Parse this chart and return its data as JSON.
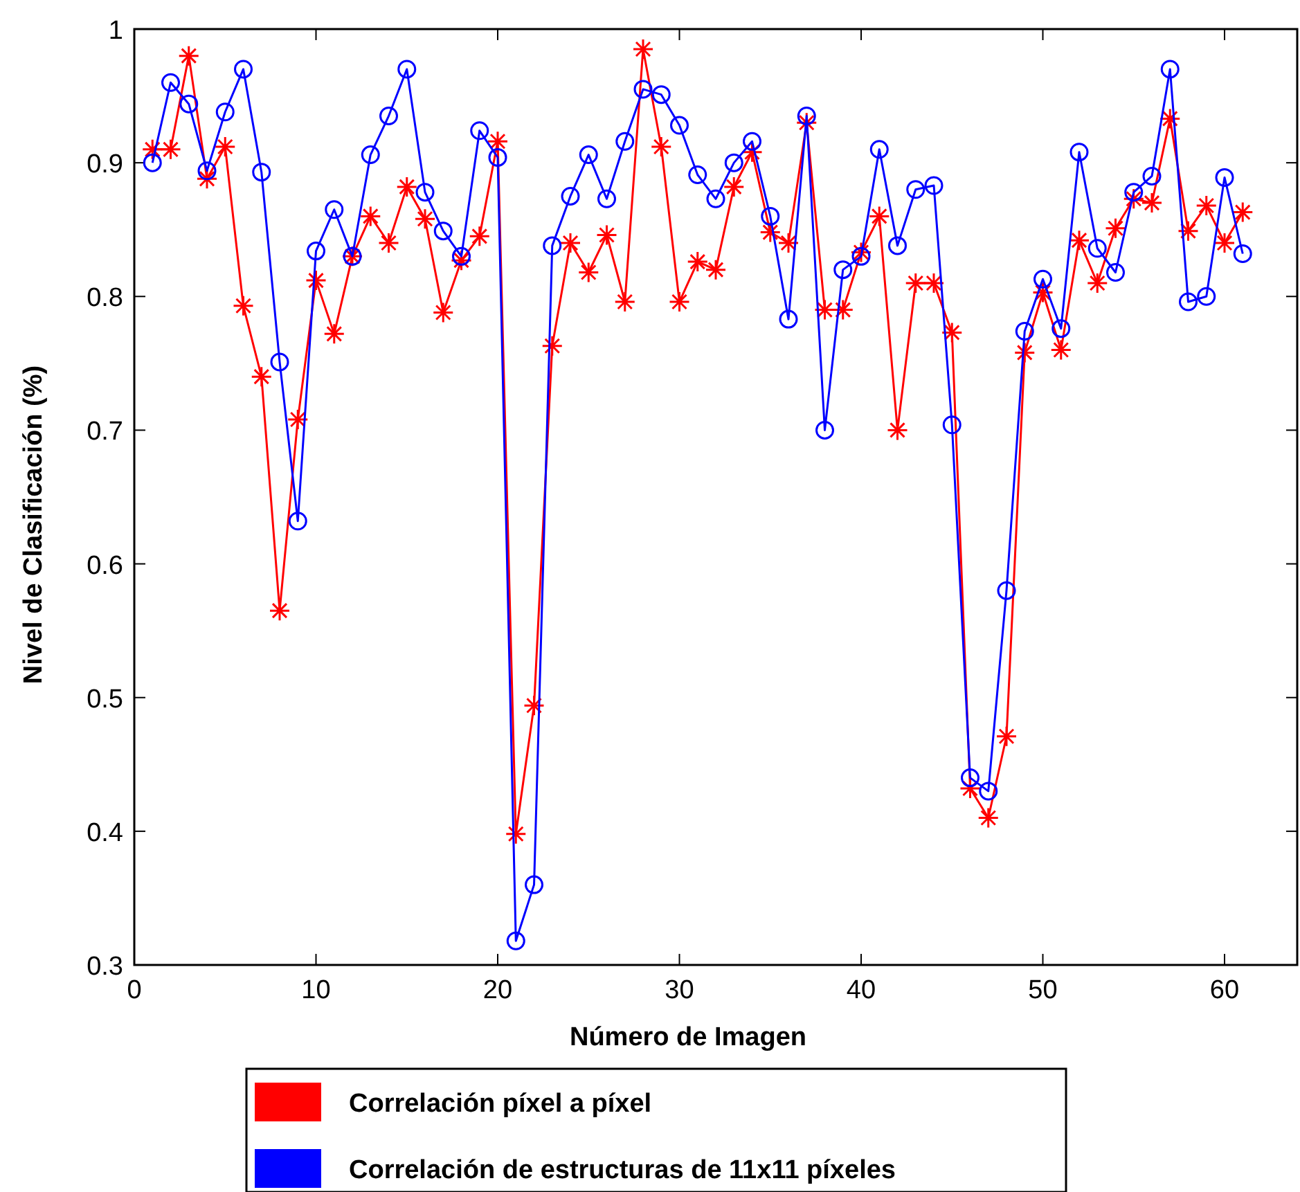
{
  "chart_data": {
    "type": "line",
    "xlabel": "Número de Imagen",
    "ylabel": "Nivel de Clasificación (%)",
    "x": [
      1,
      2,
      3,
      4,
      5,
      6,
      7,
      8,
      9,
      10,
      11,
      12,
      13,
      14,
      15,
      16,
      17,
      18,
      19,
      20,
      21,
      22,
      23,
      24,
      25,
      26,
      27,
      28,
      29,
      30,
      31,
      32,
      33,
      34,
      35,
      36,
      37,
      38,
      39,
      40,
      41,
      42,
      43,
      44,
      45,
      46,
      47,
      48,
      49,
      50,
      51,
      52,
      53,
      54,
      55,
      56,
      57,
      58,
      59,
      60,
      61
    ],
    "xlim": [
      0,
      64
    ],
    "xticks": [
      0,
      10,
      20,
      30,
      40,
      50,
      60
    ],
    "ylim": [
      0.3,
      1
    ],
    "yticks": [
      0.3,
      0.4,
      0.5,
      0.6,
      0.7,
      0.8,
      0.9,
      1
    ],
    "grid": false,
    "legend": "bottom",
    "series": [
      {
        "name": "Correlación píxel a píxel",
        "color": "#ff0000",
        "marker": "cross",
        "values": [
          0.91,
          0.91,
          0.98,
          0.888,
          0.912,
          0.793,
          0.74,
          0.565,
          0.708,
          0.812,
          0.772,
          0.83,
          0.86,
          0.84,
          0.882,
          0.858,
          0.788,
          0.827,
          0.845,
          0.916,
          0.398,
          0.494,
          0.763,
          0.84,
          0.818,
          0.846,
          0.796,
          0.985,
          0.912,
          0.796,
          0.826,
          0.82,
          0.882,
          0.908,
          0.848,
          0.84,
          0.93,
          0.79,
          0.79,
          0.833,
          0.86,
          0.7,
          0.81,
          0.81,
          0.773,
          0.432,
          0.41,
          0.471,
          0.758,
          0.803,
          0.76,
          0.842,
          0.81,
          0.851,
          0.873,
          0.87,
          0.933,
          0.849,
          0.868,
          0.84,
          0.863
        ]
      },
      {
        "name": "Correlación de estructuras de 11x11 píxeles",
        "color": "#0000ff",
        "marker": "circle",
        "values": [
          0.9,
          0.96,
          0.944,
          0.894,
          0.938,
          0.97,
          0.893,
          0.751,
          0.632,
          0.834,
          0.865,
          0.83,
          0.906,
          0.935,
          0.97,
          0.878,
          0.849,
          0.83,
          0.924,
          0.904,
          0.318,
          0.36,
          0.838,
          0.875,
          0.906,
          0.873,
          0.916,
          0.955,
          0.951,
          0.928,
          0.891,
          0.873,
          0.9,
          0.916,
          0.86,
          0.783,
          0.935,
          0.7,
          0.82,
          0.83,
          0.91,
          0.838,
          0.88,
          0.883,
          0.704,
          0.44,
          0.43,
          0.58,
          0.774,
          0.813,
          0.776,
          0.908,
          0.836,
          0.818,
          0.878,
          0.89,
          0.97,
          0.796,
          0.8,
          0.889,
          0.832
        ]
      }
    ]
  }
}
